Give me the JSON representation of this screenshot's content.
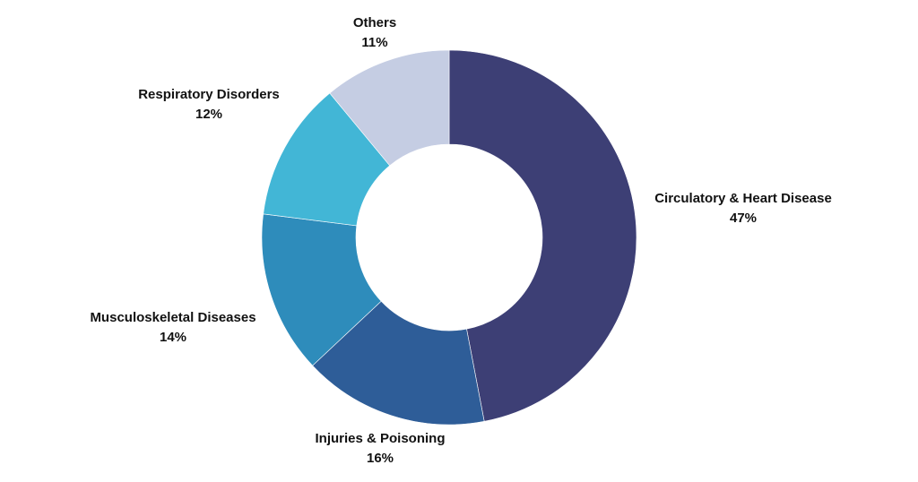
{
  "chart_data": {
    "type": "pie",
    "title": "",
    "categories": [
      "Circulatory & Heart Disease",
      "Injuries & Poisoning",
      "Musculoskeletal Diseases",
      "Respiratory Disorders",
      "Others"
    ],
    "values": [
      47,
      16,
      14,
      12,
      11
    ],
    "value_labels": [
      "47%",
      "16%",
      "14%",
      "12%",
      "11%"
    ],
    "colors": [
      "#3d3f75",
      "#2e5d98",
      "#2e8cbb",
      "#42b6d6",
      "#c5cde3"
    ],
    "donut": true,
    "legend": "none",
    "start": "top",
    "direction": "clockwise"
  }
}
